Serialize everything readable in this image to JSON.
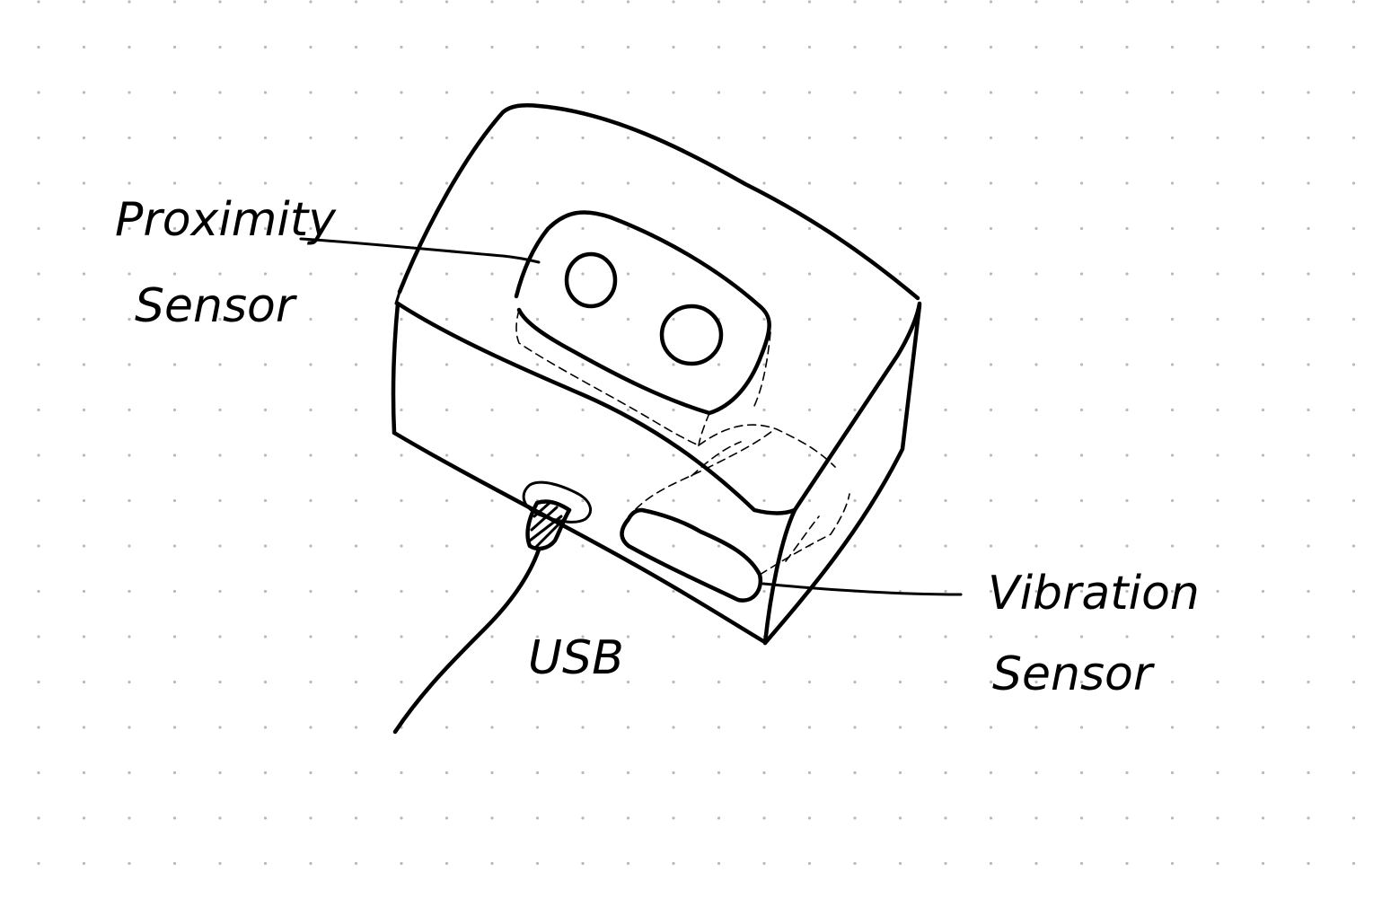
{
  "background": "#ffffff",
  "ink_color": "#000000",
  "dot_color": "#b9b9b9",
  "labels": {
    "proximity_line1": "Proximity",
    "proximity_line2": "Sensor",
    "usb": "USB",
    "vibration_line1": "Vibration",
    "vibration_line2": "Sensor"
  }
}
